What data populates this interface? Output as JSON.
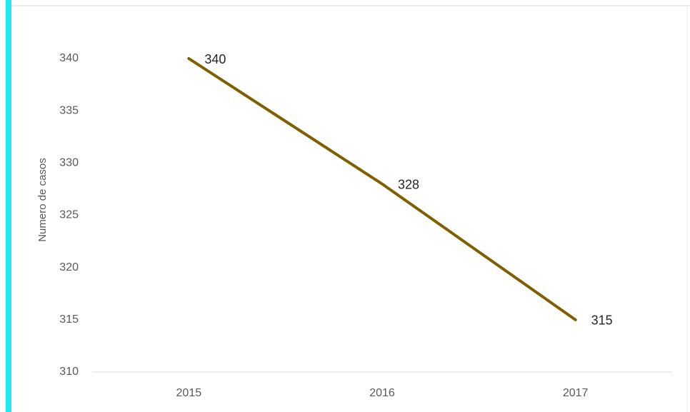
{
  "chart_data": {
    "type": "line",
    "y_label": "Numero de casos",
    "categories": [
      "2015",
      "2016",
      "2017"
    ],
    "series": [
      {
        "name": "Numero de casos",
        "color": "#7f6000",
        "values": [
          340,
          328,
          315
        ]
      }
    ],
    "ylim": [
      310,
      340
    ],
    "yticks": [
      310,
      315,
      320,
      325,
      330,
      335,
      340
    ],
    "grid": false
  }
}
